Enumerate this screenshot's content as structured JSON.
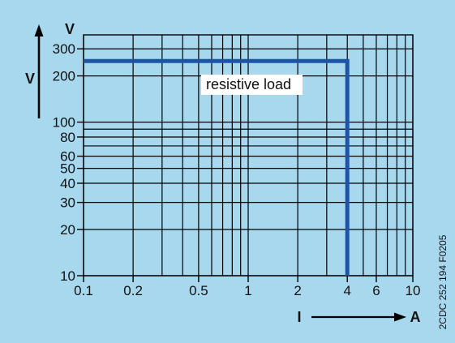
{
  "chart_data": {
    "type": "line",
    "xscale": "log",
    "yscale": "log",
    "xlim": [
      0.1,
      10
    ],
    "ylim": [
      10,
      370
    ],
    "xticks": [
      "0.1",
      "0.2",
      "0.5",
      "1",
      "2",
      "4",
      "6",
      "10"
    ],
    "yticks": [
      "10",
      "20",
      "30",
      "40",
      "50",
      "60",
      "80",
      "100",
      "200",
      "300"
    ],
    "xlabel": "I",
    "xunit": "A",
    "ylabel": "V",
    "yunit": "V",
    "grid": true,
    "series": [
      {
        "name": "resistive load",
        "x": [
          0.1,
          4,
          4
        ],
        "y": [
          250,
          250,
          10
        ],
        "color": "#1c55a6"
      }
    ]
  },
  "colors": {
    "background": "#a8d8ee",
    "grid": "#000000",
    "series": "#1c55a6",
    "label_box": "#ffffff"
  },
  "figure_code": "2CDC 252 194 F0205"
}
